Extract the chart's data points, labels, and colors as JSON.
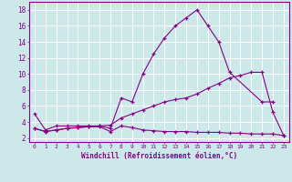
{
  "background_color": "#cce8e8",
  "grid_color": "#ffffff",
  "line_color": "#880088",
  "xlabel": "Windchill (Refroidissement éolien,°C)",
  "xlim": [
    -0.5,
    23.5
  ],
  "ylim": [
    1.5,
    19.0
  ],
  "yticks": [
    2,
    4,
    6,
    8,
    10,
    12,
    14,
    16,
    18
  ],
  "xticks": [
    0,
    1,
    2,
    3,
    4,
    5,
    6,
    7,
    8,
    9,
    10,
    11,
    12,
    13,
    14,
    15,
    16,
    17,
    18,
    19,
    20,
    21,
    22,
    23
  ],
  "curve1_x": [
    0,
    1,
    2,
    3,
    4,
    5,
    6,
    7,
    8,
    9,
    10,
    11,
    12,
    13,
    14,
    15,
    16,
    17,
    18,
    21,
    22
  ],
  "curve1_y": [
    5.0,
    3.0,
    3.5,
    3.5,
    3.5,
    3.5,
    3.5,
    3.2,
    7.0,
    6.5,
    10.0,
    12.5,
    14.5,
    16.0,
    17.0,
    18.0,
    16.0,
    14.0,
    10.2,
    6.5,
    6.5
  ],
  "curve2_x": [
    0,
    1,
    2,
    3,
    4,
    5,
    6,
    7,
    8,
    9,
    10,
    11,
    12,
    13,
    14,
    15,
    16,
    17,
    18,
    19,
    20,
    21,
    22,
    23
  ],
  "curve2_y": [
    3.2,
    2.8,
    3.0,
    3.2,
    3.3,
    3.4,
    3.4,
    2.8,
    3.5,
    3.3,
    3.0,
    2.9,
    2.8,
    2.8,
    2.8,
    2.7,
    2.7,
    2.7,
    2.6,
    2.6,
    2.5,
    2.5,
    2.5,
    2.3
  ],
  "curve3_x": [
    0,
    1,
    2,
    3,
    4,
    5,
    6,
    7,
    8,
    9,
    10,
    11,
    12,
    13,
    14,
    15,
    16,
    17,
    18,
    19,
    20,
    21,
    22,
    23
  ],
  "curve3_y": [
    3.2,
    2.8,
    3.0,
    3.2,
    3.3,
    3.4,
    3.5,
    3.6,
    4.5,
    5.0,
    5.5,
    6.0,
    6.5,
    6.8,
    7.0,
    7.5,
    8.2,
    8.8,
    9.5,
    9.8,
    10.2,
    10.2,
    5.2,
    2.3
  ]
}
